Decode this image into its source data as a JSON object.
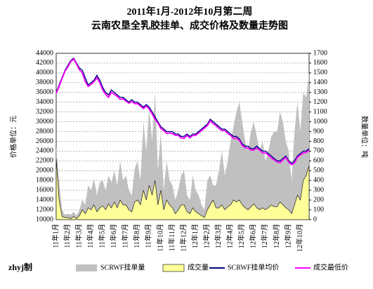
{
  "chart_data": {
    "type": "combo",
    "title": "2011年1月-2012年10月第二周",
    "subtitle": "云南农垦全乳胶挂单、成交价格及数量走势图",
    "y_label": "价格单位：元",
    "y2_label": "数量单位：吨",
    "credit": "zhyj制",
    "categories": [
      "11年1月",
      null,
      null,
      null,
      "11年2月",
      null,
      null,
      null,
      "11年3月",
      null,
      null,
      null,
      "11年4月",
      null,
      null,
      null,
      "11年5月",
      null,
      null,
      null,
      "11年6月",
      null,
      null,
      null,
      "11年7月",
      null,
      null,
      null,
      "11年8月",
      null,
      null,
      null,
      "11年9月",
      null,
      null,
      null,
      "11年10月",
      null,
      null,
      null,
      "11年11月",
      null,
      null,
      null,
      "11年12月",
      null,
      null,
      null,
      "12年1月",
      null,
      null,
      null,
      "12年2月",
      null,
      null,
      null,
      "12年3月",
      null,
      null,
      null,
      "12年4月",
      null,
      null,
      null,
      "12年5月",
      null,
      null,
      null,
      "12年6月",
      null,
      null,
      null,
      "12年7月",
      null,
      null,
      null,
      "12年8月",
      null,
      null,
      null,
      "12年9月",
      null,
      null,
      null,
      "12年10月",
      null,
      null,
      null
    ],
    "ylim": [
      10000,
      44000
    ],
    "yticks": [
      10000,
      12000,
      14000,
      16000,
      18000,
      20000,
      22000,
      24000,
      26000,
      28000,
      30000,
      32000,
      34000,
      36000,
      38000,
      40000,
      42000,
      44000
    ],
    "y2lim": [
      0,
      1700
    ],
    "y2ticks": [
      0,
      100,
      200,
      300,
      400,
      500,
      600,
      700,
      800,
      900,
      1000,
      1100,
      1200,
      1300,
      1400,
      1500,
      1600,
      1700
    ],
    "grid": true,
    "series": [
      {
        "name": "SCRWF挂单量",
        "kind": "area",
        "axis": "y2",
        "color": "#c0c0c0",
        "values": [
          750,
          400,
          100,
          50,
          60,
          50,
          80,
          40,
          100,
          200,
          150,
          350,
          300,
          420,
          250,
          380,
          400,
          300,
          450,
          380,
          500,
          350,
          600,
          400,
          450,
          300,
          250,
          520,
          600,
          400,
          1000,
          700,
          1150,
          800,
          1300,
          500,
          900,
          300,
          600,
          400,
          350,
          200,
          300,
          450,
          500,
          250,
          200,
          450,
          300,
          250,
          150,
          100,
          400,
          450,
          350,
          350,
          500,
          700,
          450,
          600,
          800,
          950,
          1100,
          1200,
          1000,
          800,
          700,
          900,
          1000,
          850,
          700,
          800,
          600,
          700,
          850,
          900,
          900,
          1100,
          1000,
          800,
          700,
          400,
          900,
          1200,
          900,
          1300,
          1250,
          1500
        ]
      },
      {
        "name": "成交量",
        "kind": "area",
        "axis": "y2",
        "color": "#ffff99",
        "values": [
          620,
          200,
          30,
          20,
          20,
          10,
          30,
          10,
          40,
          100,
          60,
          120,
          100,
          150,
          80,
          120,
          140,
          100,
          160,
          120,
          180,
          120,
          200,
          150,
          150,
          100,
          80,
          180,
          200,
          150,
          300,
          200,
          350,
          250,
          400,
          150,
          300,
          100,
          200,
          150,
          120,
          60,
          100,
          150,
          150,
          80,
          60,
          120,
          80,
          60,
          40,
          20,
          100,
          150,
          200,
          120,
          120,
          150,
          100,
          130,
          150,
          200,
          180,
          200,
          150,
          120,
          100,
          130,
          160,
          120,
          100,
          120,
          100,
          120,
          150,
          130,
          130,
          180,
          150,
          120,
          100,
          60,
          150,
          250,
          200,
          400,
          450,
          550
        ]
      },
      {
        "name": "SCRWF挂单均价",
        "kind": "line",
        "color": "#000080",
        "values": [
          36000,
          37500,
          39000,
          40500,
          41500,
          42500,
          43000,
          42000,
          41000,
          40500,
          39000,
          37500,
          38000,
          38500,
          39500,
          38500,
          37000,
          36000,
          35500,
          36500,
          36000,
          35500,
          35000,
          35000,
          34500,
          34000,
          34500,
          34000,
          34000,
          33500,
          33000,
          33500,
          33000,
          32000,
          31000,
          30000,
          29000,
          28500,
          28000,
          28000,
          28000,
          27500,
          27500,
          27000,
          27000,
          27500,
          27000,
          27500,
          27500,
          28000,
          28500,
          29000,
          29500,
          30500,
          30000,
          29500,
          29000,
          28500,
          28500,
          28000,
          27500,
          27000,
          27000,
          26500,
          25500,
          25000,
          25000,
          24500,
          24500,
          25000,
          24500,
          24000,
          24000,
          23500,
          23000,
          22500,
          22000,
          22000,
          22500,
          23000,
          22000,
          21500,
          22000,
          23000,
          23500,
          24000,
          24000,
          24500
        ]
      },
      {
        "name": "成交最低价",
        "kind": "line",
        "color": "#ff00ff",
        "values": [
          35800,
          37200,
          38800,
          40300,
          41200,
          42300,
          42800,
          41800,
          40600,
          40000,
          38200,
          37200,
          37600,
          38200,
          39000,
          38000,
          36500,
          35600,
          35000,
          36000,
          35600,
          35200,
          34600,
          34700,
          34200,
          33800,
          34100,
          33700,
          33700,
          33200,
          32700,
          33200,
          32600,
          31600,
          30500,
          29700,
          28600,
          28200,
          27600,
          27700,
          27600,
          27200,
          27200,
          26700,
          26600,
          27200,
          26700,
          27200,
          27200,
          27700,
          28200,
          28700,
          29200,
          30200,
          29600,
          29200,
          28600,
          28200,
          28200,
          27600,
          27200,
          26600,
          26600,
          26200,
          25200,
          24700,
          24600,
          24200,
          24200,
          24600,
          24200,
          23600,
          23600,
          23200,
          22600,
          22200,
          21800,
          21600,
          22200,
          22700,
          21700,
          21200,
          21600,
          22700,
          23200,
          23600,
          23700,
          24200
        ]
      }
    ]
  }
}
